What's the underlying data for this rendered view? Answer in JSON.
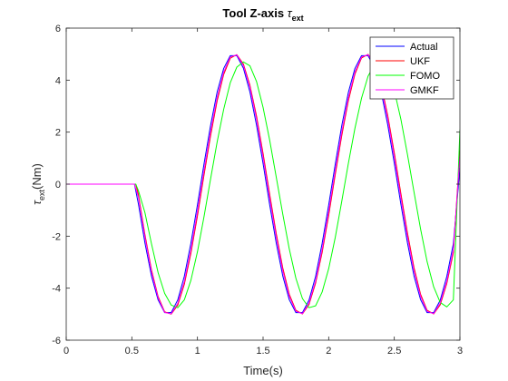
{
  "chart_data": {
    "type": "line",
    "title": "Tool Z-axis τext",
    "title_parts": {
      "main": "Tool Z-axis ",
      "symbol": "τ",
      "sub": "ext"
    },
    "xlabel": "Time(s)",
    "ylabel": "τext(Nm)",
    "ylabel_parts": {
      "symbol": "τ",
      "sub": "ext",
      "rest": "(Nm)"
    },
    "xlim": [
      0,
      3
    ],
    "ylim": [
      -6,
      6
    ],
    "xticks": [
      0,
      0.5,
      1,
      1.5,
      2,
      2.5,
      3
    ],
    "xtick_labels": [
      "0",
      "0.5",
      "1",
      "1.5",
      "2",
      "2.5",
      "3"
    ],
    "yticks": [
      -6,
      -4,
      -2,
      0,
      2,
      4,
      6
    ],
    "ytick_labels": [
      "-6",
      "-4",
      "-2",
      "0",
      "2",
      "4",
      "6"
    ],
    "grid": false,
    "legend_position": "top-right",
    "series": [
      {
        "name": "Actual",
        "color": "#0000ff",
        "x": [
          0,
          0.1,
          0.2,
          0.3,
          0.4,
          0.5,
          0.52,
          0.55,
          0.6,
          0.65,
          0.7,
          0.75,
          0.8,
          0.85,
          0.9,
          0.95,
          1.0,
          1.05,
          1.1,
          1.15,
          1.2,
          1.25,
          1.3,
          1.35,
          1.4,
          1.45,
          1.5,
          1.55,
          1.6,
          1.65,
          1.7,
          1.75,
          1.8,
          1.85,
          1.9,
          1.95,
          2.0,
          2.05,
          2.1,
          2.15,
          2.2,
          2.25,
          2.3,
          2.35,
          2.4,
          2.45,
          2.5,
          2.55,
          2.6,
          2.65,
          2.7,
          2.75,
          2.8,
          2.85,
          2.9,
          2.95,
          3.0
        ],
        "y": [
          0,
          0,
          0,
          0,
          0,
          0,
          0,
          -0.76,
          -2.27,
          -3.54,
          -4.45,
          -4.94,
          -4.94,
          -4.45,
          -3.54,
          -2.27,
          -0.79,
          0.78,
          2.26,
          3.54,
          4.45,
          4.94,
          4.94,
          4.46,
          3.54,
          2.27,
          0.79,
          -0.78,
          -2.26,
          -3.53,
          -4.45,
          -4.94,
          -4.94,
          -4.46,
          -3.55,
          -2.28,
          -0.8,
          0.77,
          2.26,
          3.53,
          4.45,
          4.94,
          4.94,
          4.46,
          3.55,
          2.28,
          0.8,
          -0.77,
          -2.25,
          -3.53,
          -4.44,
          -4.94,
          -4.94,
          -4.46,
          -3.55,
          -2.29,
          0.62
        ]
      },
      {
        "name": "UKF",
        "color": "#ff0000",
        "x": [
          0,
          0.1,
          0.2,
          0.3,
          0.4,
          0.5,
          0.53,
          0.55,
          0.6,
          0.65,
          0.7,
          0.75,
          0.8,
          0.85,
          0.9,
          0.95,
          1.0,
          1.05,
          1.1,
          1.15,
          1.2,
          1.25,
          1.3,
          1.35,
          1.4,
          1.45,
          1.5,
          1.55,
          1.6,
          1.65,
          1.7,
          1.75,
          1.8,
          1.85,
          1.9,
          1.95,
          2.0,
          2.05,
          2.1,
          2.15,
          2.2,
          2.25,
          2.3,
          2.35,
          2.4,
          2.45,
          2.5,
          2.55,
          2.6,
          2.65,
          2.7,
          2.75,
          2.8,
          2.85,
          2.9,
          2.95,
          3.0
        ],
        "y": [
          0,
          0,
          0,
          0,
          0,
          0,
          0,
          -0.4,
          -1.95,
          -3.3,
          -4.32,
          -4.91,
          -5.0,
          -4.65,
          -3.85,
          -2.66,
          -1.22,
          0.35,
          1.86,
          3.2,
          4.22,
          4.84,
          4.98,
          4.62,
          3.8,
          2.62,
          1.18,
          -0.38,
          -1.89,
          -3.22,
          -4.24,
          -4.85,
          -4.99,
          -4.63,
          -3.81,
          -2.63,
          -1.2,
          0.37,
          1.88,
          3.21,
          4.23,
          4.85,
          4.99,
          4.63,
          3.82,
          2.64,
          1.2,
          -0.36,
          -1.87,
          -3.21,
          -4.23,
          -4.85,
          -4.99,
          -4.64,
          -3.82,
          -2.64,
          1.3
        ]
      },
      {
        "name": "FOMO",
        "color": "#00ff00",
        "x": [
          0,
          0.1,
          0.2,
          0.3,
          0.4,
          0.5,
          0.53,
          0.55,
          0.6,
          0.65,
          0.7,
          0.75,
          0.8,
          0.85,
          0.9,
          0.95,
          1.0,
          1.05,
          1.1,
          1.15,
          1.2,
          1.25,
          1.3,
          1.35,
          1.4,
          1.45,
          1.5,
          1.55,
          1.6,
          1.65,
          1.7,
          1.75,
          1.8,
          1.85,
          1.9,
          1.95,
          2.0,
          2.05,
          2.1,
          2.15,
          2.2,
          2.25,
          2.3,
          2.35,
          2.4,
          2.45,
          2.5,
          2.55,
          2.6,
          2.65,
          2.7,
          2.75,
          2.8,
          2.85,
          2.9,
          2.95,
          3.0
        ],
        "y": [
          0,
          0,
          0,
          0,
          0,
          0,
          0,
          -0.25,
          -1.1,
          -2.3,
          -3.4,
          -4.2,
          -4.65,
          -4.75,
          -4.45,
          -3.7,
          -2.6,
          -1.25,
          0.2,
          1.62,
          2.88,
          3.9,
          4.5,
          4.7,
          4.55,
          3.95,
          2.95,
          1.7,
          0.28,
          -1.15,
          -2.5,
          -3.62,
          -4.4,
          -4.75,
          -4.68,
          -4.15,
          -3.25,
          -2.05,
          -0.65,
          0.8,
          2.15,
          3.3,
          4.15,
          4.6,
          4.7,
          4.35,
          3.6,
          2.5,
          1.15,
          -0.3,
          -1.72,
          -2.98,
          -3.95,
          -4.55,
          -4.72,
          -4.45,
          2.1
        ]
      },
      {
        "name": "GMKF",
        "color": "#ff00ff",
        "x": [
          0,
          0.1,
          0.2,
          0.3,
          0.4,
          0.5,
          0.52,
          0.55,
          0.6,
          0.65,
          0.7,
          0.75,
          0.8,
          0.85,
          0.9,
          0.95,
          1.0,
          1.05,
          1.1,
          1.15,
          1.2,
          1.25,
          1.3,
          1.35,
          1.4,
          1.45,
          1.5,
          1.55,
          1.6,
          1.65,
          1.7,
          1.75,
          1.8,
          1.85,
          1.9,
          1.95,
          2.0,
          2.05,
          2.1,
          2.15,
          2.2,
          2.25,
          2.3,
          2.35,
          2.4,
          2.45,
          2.5,
          2.55,
          2.6,
          2.65,
          2.7,
          2.75,
          2.8,
          2.85,
          2.9,
          2.95,
          3.0
        ],
        "y": [
          0,
          0,
          0,
          0,
          0,
          0,
          0,
          -0.5,
          -2.05,
          -3.38,
          -4.37,
          -4.93,
          -4.99,
          -4.58,
          -3.74,
          -2.52,
          -1.05,
          0.52,
          2.02,
          3.33,
          4.31,
          4.89,
          4.97,
          4.56,
          3.72,
          2.5,
          1.03,
          -0.53,
          -2.03,
          -3.34,
          -4.32,
          -4.89,
          -4.98,
          -4.57,
          -3.73,
          -2.51,
          -1.04,
          0.52,
          2.02,
          3.33,
          4.31,
          4.89,
          4.98,
          4.57,
          3.73,
          2.51,
          1.04,
          -0.52,
          -2.02,
          -3.33,
          -4.31,
          -4.89,
          -4.98,
          -4.57,
          -3.73,
          -2.52,
          1.1
        ]
      }
    ]
  }
}
